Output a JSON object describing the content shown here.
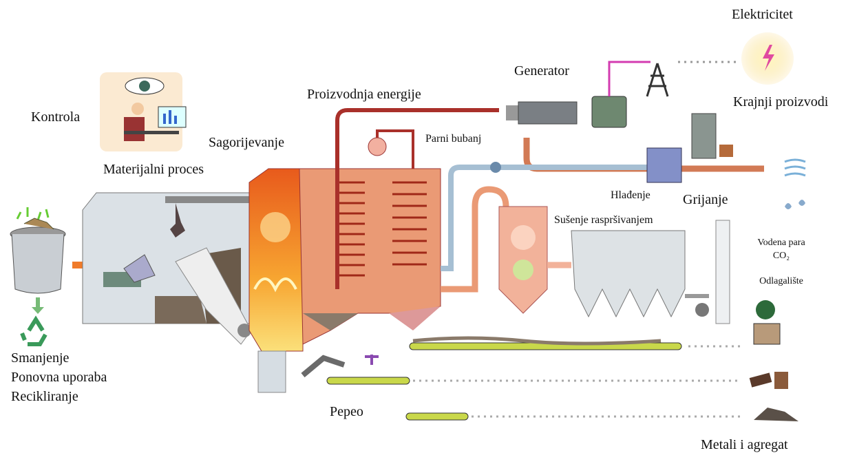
{
  "labels": {
    "electricity": "Elektricitet",
    "generator": "Generator",
    "end_products": "Krajnji proizvodi",
    "energy_production": "Proizvodnja energije",
    "control": "Kontrola",
    "combustion": "Sagorijevanje",
    "steam_drum": "Parni bubanj",
    "material_process": "Materijalni proces",
    "cooling": "Hlađenje",
    "heating": "Grijanje",
    "spray_drying": "Sušenje raspršivanjem",
    "water_vapour": "Vodena para",
    "co2": "CO₂",
    "landfill": "Odlagalište",
    "reduce": "Smanjenje",
    "reuse": "Ponovna uporaba",
    "recycle": "Recikliranje",
    "ash": "Pepeo",
    "metals": "Metali i agregat"
  }
}
